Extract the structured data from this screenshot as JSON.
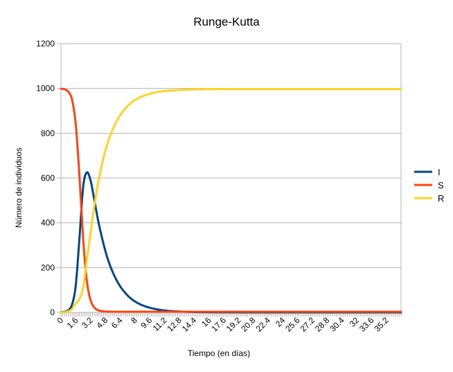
{
  "chart_data": {
    "type": "line",
    "title": "Runge-Kutta",
    "xlabel": "Tiempo (en días)",
    "ylabel": "Número de individuos",
    "ylim": [
      0,
      1200
    ],
    "yticks": [
      "0",
      "200",
      "400",
      "600",
      "800",
      "1000",
      "1200"
    ],
    "xlim": [
      0,
      36.8
    ],
    "xticks": [
      "0",
      "1.6",
      "3.2",
      "4.8",
      "6.4",
      "8",
      "9.6",
      "11.2",
      "12.8",
      "14.4",
      "16",
      "17.6",
      "19.2",
      "20.8",
      "22.4",
      "24",
      "25.6",
      "27.2",
      "28.8",
      "30.4",
      "32",
      "33.6",
      "35.2"
    ],
    "grid": true,
    "legend_position": "right",
    "series": [
      {
        "name": "I",
        "color": "#004586",
        "x": [
          0,
          0.4,
          0.8,
          1.2,
          1.6,
          2.0,
          2.4,
          2.8,
          3.2,
          3.6,
          4.0,
          4.4,
          4.8,
          5.2,
          5.6,
          6.0,
          6.4,
          6.8,
          7.2,
          7.6,
          8.0,
          8.4,
          8.8,
          9.2,
          9.6,
          10.0,
          10.4,
          10.8,
          11.2,
          11.6,
          12.0,
          12.4,
          12.8,
          13.2,
          13.6,
          14.0,
          14.4,
          14.8,
          15.2,
          16.0,
          17.6,
          20,
          24,
          28,
          32,
          36.8
        ],
        "y": [
          1,
          3,
          10,
          35,
          120,
          330,
          560,
          625,
          590,
          505,
          415,
          340,
          275,
          222,
          180,
          145,
          117,
          95,
          76,
          61,
          49,
          40,
          32,
          26,
          21,
          17,
          13.5,
          11,
          8.8,
          7.1,
          5.7,
          4.6,
          3.7,
          3.0,
          2.4,
          1.9,
          1.5,
          1.2,
          1.0,
          0.6,
          0.3,
          0.1,
          0,
          0,
          0,
          0
        ]
      },
      {
        "name": "S",
        "color": "#ff420e",
        "x": [
          0,
          0.4,
          0.8,
          1.2,
          1.6,
          2.0,
          2.4,
          2.8,
          3.2,
          3.6,
          4.0,
          4.4,
          4.8,
          5.2,
          5.6,
          6.4,
          8.0,
          12,
          16,
          20,
          24,
          28,
          32,
          36.8
        ],
        "y": [
          999,
          996,
          985,
          950,
          840,
          610,
          330,
          140,
          55,
          22,
          10,
          6,
          4,
          3.5,
          3,
          3,
          3,
          3,
          3,
          3,
          3,
          3,
          3,
          3
        ]
      },
      {
        "name": "R",
        "color": "#ffd320",
        "x": [
          0,
          0.4,
          0.8,
          1.2,
          1.6,
          2.0,
          2.4,
          2.8,
          3.2,
          3.6,
          4.0,
          4.4,
          4.8,
          5.2,
          5.6,
          6.0,
          6.4,
          6.8,
          7.2,
          7.6,
          8.0,
          8.4,
          8.8,
          9.2,
          9.6,
          10.0,
          10.4,
          10.8,
          11.2,
          11.6,
          12.0,
          12.4,
          12.8,
          13.2,
          13.6,
          14.0,
          14.4,
          15.2,
          16.0,
          17.6,
          20,
          24,
          28,
          32,
          36.8
        ],
        "y": [
          0,
          1,
          5,
          15,
          40,
          60,
          110,
          235,
          355,
          473,
          575,
          654,
          721,
          775,
          817,
          852,
          880,
          902,
          921,
          936,
          948,
          957,
          965,
          971,
          976,
          980,
          984,
          986,
          988,
          990,
          991,
          992,
          993,
          994,
          994.5,
          995,
          995.5,
          996,
          996.5,
          997,
          997,
          997,
          997,
          997,
          997
        ]
      }
    ]
  }
}
